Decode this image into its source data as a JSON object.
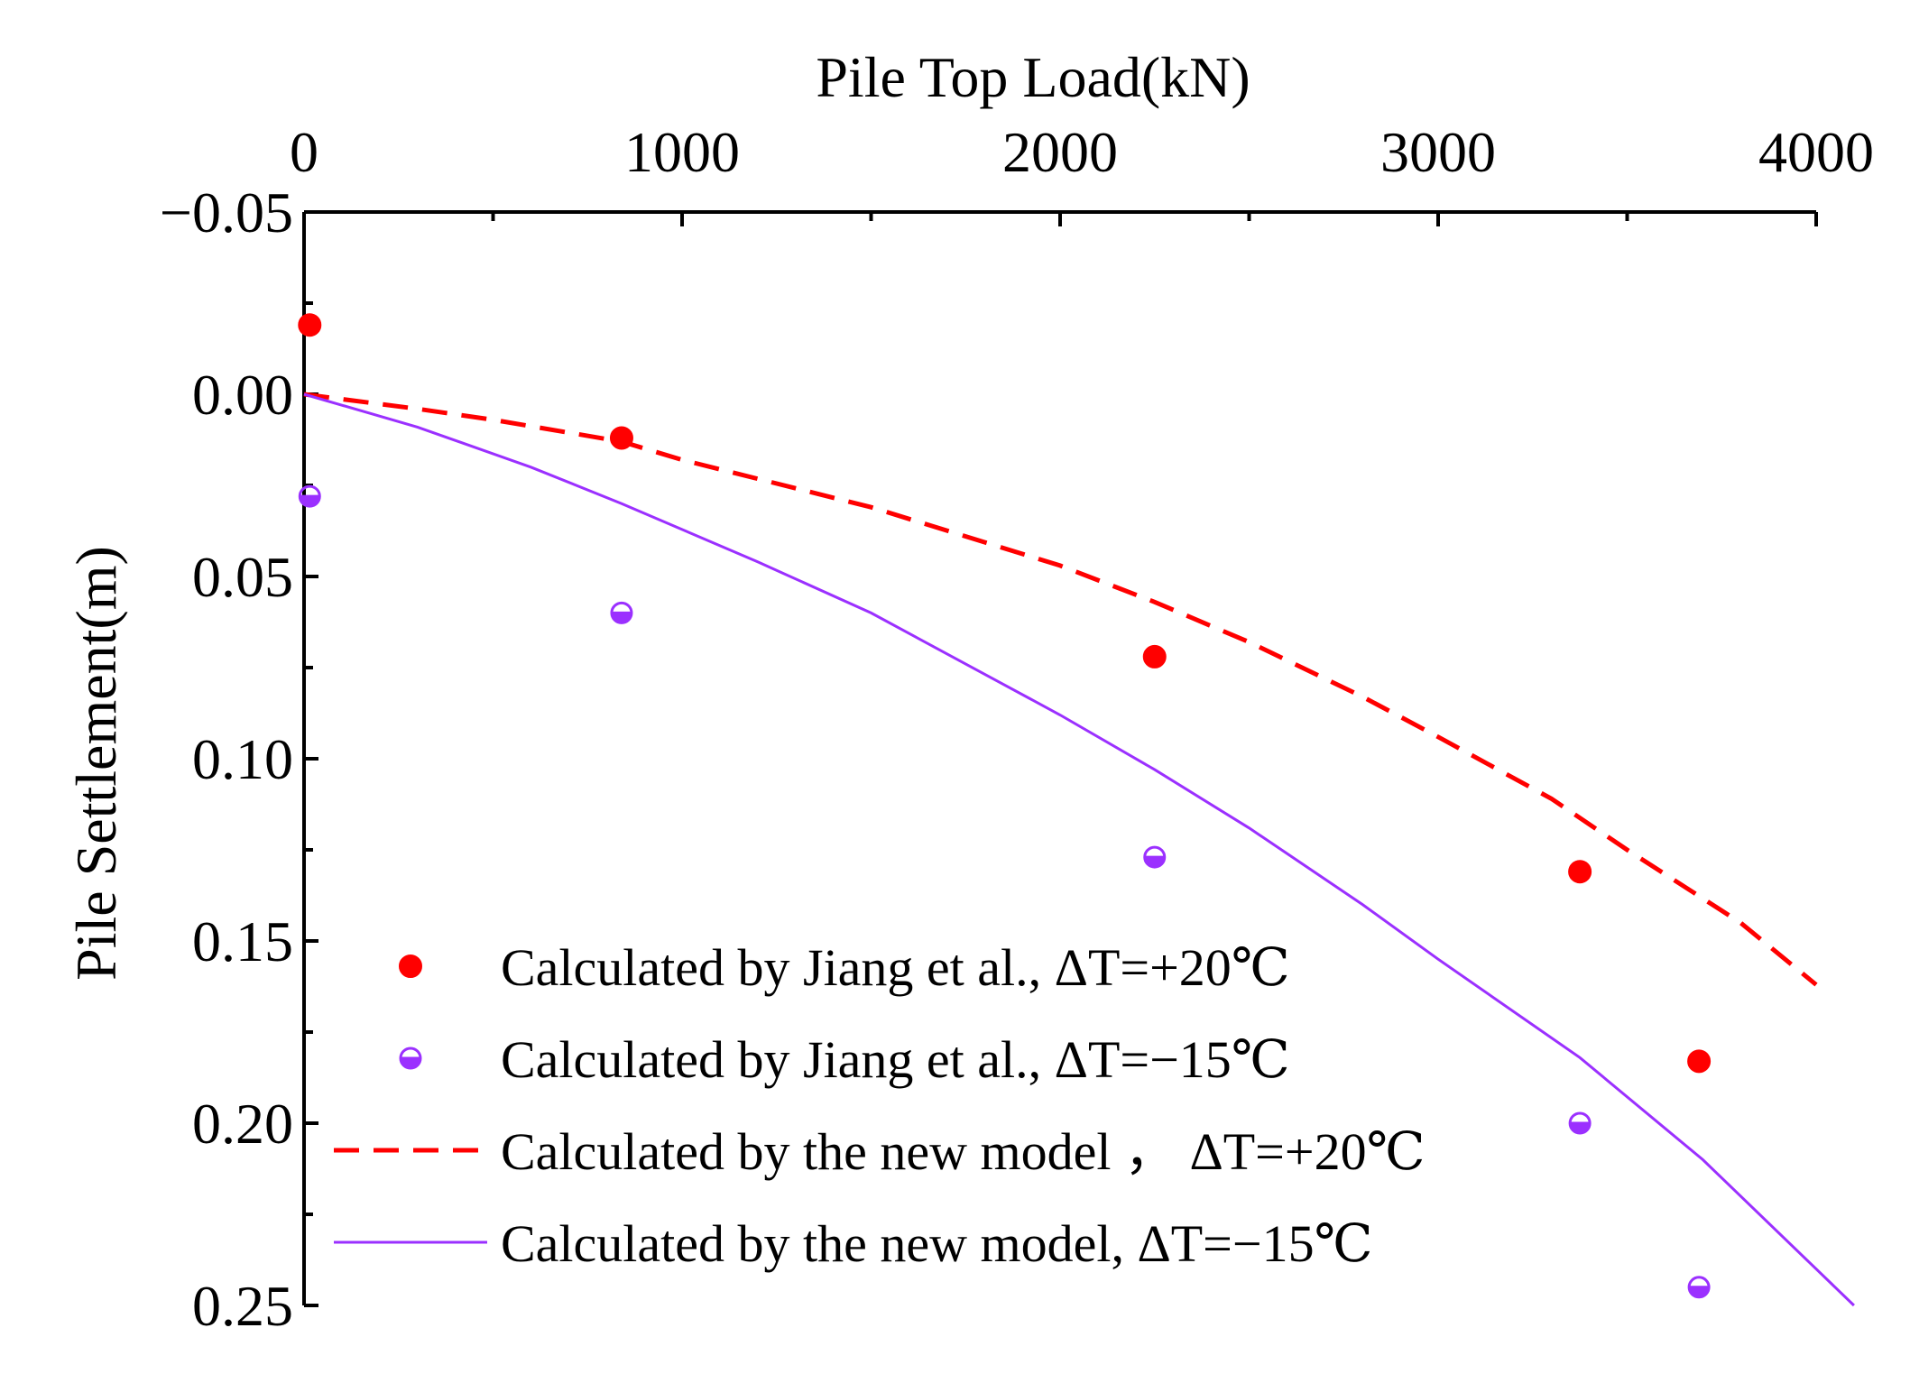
{
  "chart_data": {
    "type": "scatter+line",
    "xlabel": "Pile Top Load(kN)",
    "ylabel": "Pile Settlement(m)",
    "xlim": [
      0,
      4000
    ],
    "ylim": [
      -0.05,
      0.25
    ],
    "x_axis_position": "top",
    "y_axis_inverted": true,
    "x_ticks": [
      0,
      1000,
      2000,
      3000,
      4000
    ],
    "x_tick_labels": [
      "0",
      "1000",
      "2000",
      "3000",
      "4000"
    ],
    "y_ticks": [
      -0.05,
      0.0,
      0.05,
      0.1,
      0.15,
      0.2,
      0.25
    ],
    "y_tick_labels": [
      "−0.05",
      "0.00",
      "0.05",
      "0.10",
      "0.15",
      "0.20",
      "0.25"
    ],
    "grid": false,
    "legend_position": "bottom-left",
    "series": [
      {
        "name": "Calculated  by Jiang et al.,   ΔT=+20℃",
        "style": "filled-circle",
        "color": "#ff0000",
        "points": [
          [
            15,
            -0.019
          ],
          [
            840,
            0.012
          ],
          [
            2250,
            0.072
          ],
          [
            3375,
            0.131
          ],
          [
            3690,
            0.183
          ]
        ]
      },
      {
        "name": "Calculated  by Jiang et al.,   ΔT=−15℃",
        "style": "half-filled-circle",
        "color": "#9b30ff",
        "points": [
          [
            15,
            0.028
          ],
          [
            840,
            0.06
          ],
          [
            2250,
            0.127
          ],
          [
            3375,
            0.2
          ],
          [
            3690,
            0.245
          ]
        ]
      },
      {
        "name": "Calculated  by the new model ，  ΔT=+20℃",
        "style": "dashed-line",
        "color": "#ff0000",
        "points": [
          [
            0,
            0.0
          ],
          [
            300,
            0.004
          ],
          [
            500,
            0.007
          ],
          [
            840,
            0.013
          ],
          [
            1000,
            0.018
          ],
          [
            1500,
            0.031
          ],
          [
            2000,
            0.047
          ],
          [
            2250,
            0.057
          ],
          [
            2500,
            0.068
          ],
          [
            2800,
            0.083
          ],
          [
            3000,
            0.094
          ],
          [
            3300,
            0.111
          ],
          [
            3500,
            0.125
          ],
          [
            3800,
            0.145
          ],
          [
            4000,
            0.162
          ]
        ]
      },
      {
        "name": "Calculated  by the new model,   ΔT=−15℃",
        "style": "solid-line",
        "color": "#9b30ff",
        "points": [
          [
            0,
            0.0
          ],
          [
            300,
            0.009
          ],
          [
            600,
            0.02
          ],
          [
            840,
            0.03
          ],
          [
            1200,
            0.046
          ],
          [
            1500,
            0.06
          ],
          [
            2000,
            0.088
          ],
          [
            2250,
            0.103
          ],
          [
            2500,
            0.119
          ],
          [
            2800,
            0.14
          ],
          [
            3000,
            0.155
          ],
          [
            3375,
            0.182
          ],
          [
            3700,
            0.21
          ],
          [
            4000,
            0.24
          ],
          [
            4100,
            0.25
          ]
        ]
      }
    ]
  }
}
